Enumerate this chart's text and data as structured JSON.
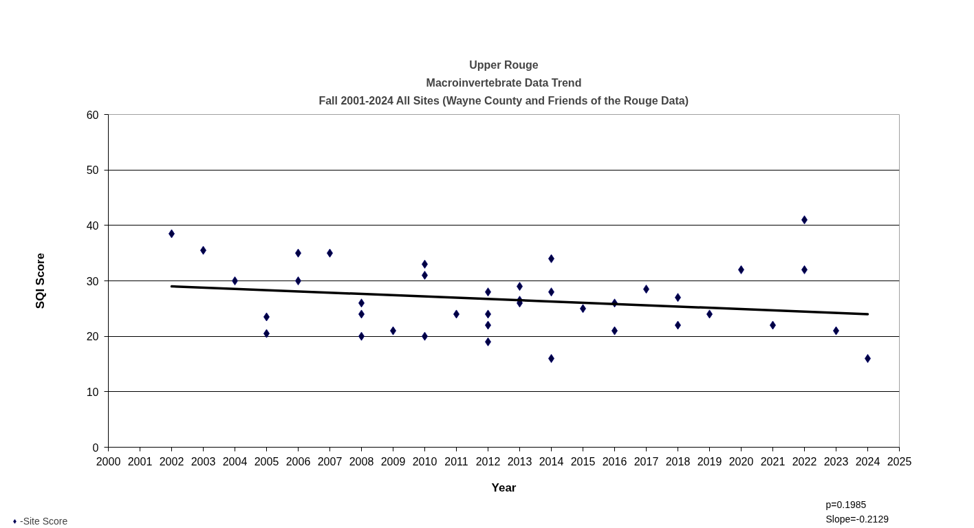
{
  "chart_data": {
    "type": "scatter",
    "title": "Upper Rouge\nMacroinvertebrate Data Trend\nFall 2001-2024 All Sites (Wayne County and Friends of the Rouge Data)",
    "xlabel": "Year",
    "ylabel": "SQI Score",
    "xlim": [
      2000,
      2025
    ],
    "xticks": [
      2000,
      2001,
      2002,
      2003,
      2004,
      2005,
      2006,
      2007,
      2008,
      2009,
      2010,
      2011,
      2012,
      2013,
      2014,
      2015,
      2016,
      2017,
      2018,
      2019,
      2020,
      2021,
      2022,
      2023,
      2024,
      2025
    ],
    "ylim": [
      0,
      60
    ],
    "yticks": [
      0,
      10,
      20,
      30,
      40,
      50,
      60
    ],
    "grid": "y",
    "legend": "bottom left",
    "annotations": [
      "p=0.1985",
      "Slope=-0.2129"
    ],
    "series": [
      {
        "name": "-Site Score",
        "color": "#000040",
        "marker": "diamond",
        "x": [
          2002,
          2003,
          2004,
          2005,
          2005,
          2006,
          2006,
          2007,
          2008,
          2008,
          2008,
          2009,
          2010,
          2010,
          2010,
          2011,
          2012,
          2012,
          2012,
          2012,
          2013,
          2013,
          2013,
          2014,
          2014,
          2014,
          2015,
          2016,
          2016,
          2017,
          2018,
          2018,
          2019,
          2020,
          2021,
          2022,
          2022,
          2023,
          2024
        ],
        "values": [
          38.5,
          35.5,
          30,
          23.5,
          20.5,
          35,
          30,
          35,
          26,
          24,
          20,
          21,
          33,
          31,
          20,
          24,
          28,
          24,
          22,
          19,
          29,
          26.5,
          26,
          34,
          28,
          16,
          25,
          26,
          21,
          28.5,
          27,
          22,
          24,
          32,
          22,
          41,
          32,
          21,
          16
        ]
      },
      {
        "type": "line",
        "color": "#000000",
        "x": [
          2002,
          2024
        ],
        "values": [
          29,
          24
        ]
      }
    ]
  }
}
